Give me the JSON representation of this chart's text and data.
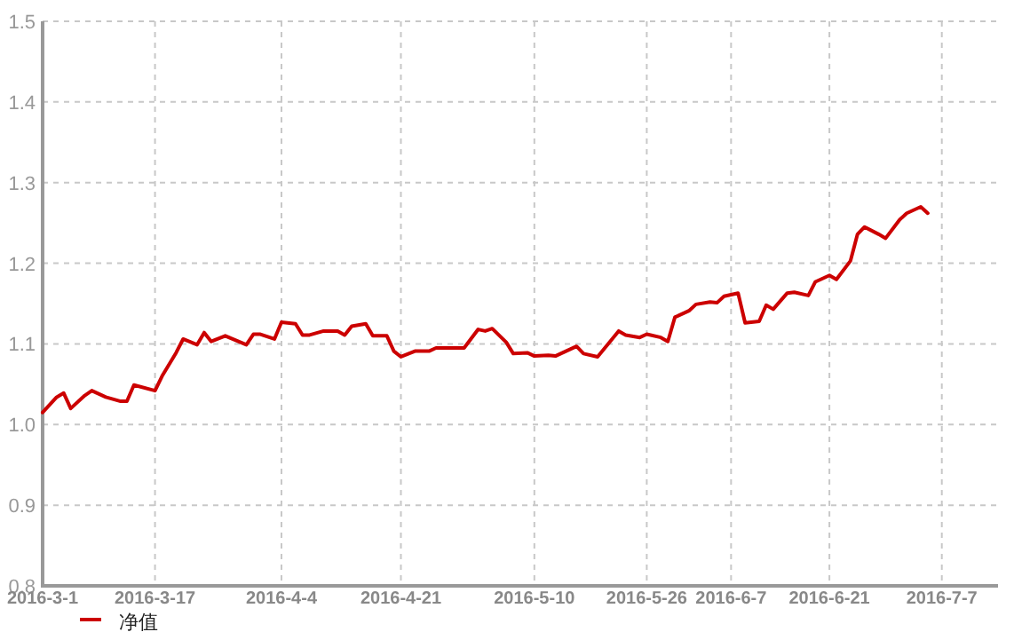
{
  "chart_data": {
    "type": "line",
    "x": [
      "2016-03-01",
      "2016-03-03",
      "2016-03-04",
      "2016-03-05",
      "2016-03-07",
      "2016-03-08",
      "2016-03-10",
      "2016-03-12",
      "2016-03-13",
      "2016-03-14",
      "2016-03-17",
      "2016-03-18",
      "2016-03-20",
      "2016-03-21",
      "2016-03-23",
      "2016-03-24",
      "2016-03-25",
      "2016-03-27",
      "2016-03-30",
      "2016-03-31",
      "2016-04-01",
      "2016-04-03",
      "2016-04-04",
      "2016-04-06",
      "2016-04-07",
      "2016-04-08",
      "2016-04-10",
      "2016-04-12",
      "2016-04-13",
      "2016-04-14",
      "2016-04-16",
      "2016-04-17",
      "2016-04-19",
      "2016-04-20",
      "2016-04-21",
      "2016-04-23",
      "2016-04-25",
      "2016-04-26",
      "2016-04-29",
      "2016-04-30",
      "2016-05-02",
      "2016-05-03",
      "2016-05-04",
      "2016-05-06",
      "2016-05-07",
      "2016-05-09",
      "2016-05-10",
      "2016-05-12",
      "2016-05-13",
      "2016-05-16",
      "2016-05-17",
      "2016-05-19",
      "2016-05-22",
      "2016-05-23",
      "2016-05-25",
      "2016-05-26",
      "2016-05-28",
      "2016-05-29",
      "2016-05-30",
      "2016-06-01",
      "2016-06-02",
      "2016-06-04",
      "2016-06-05",
      "2016-06-06",
      "2016-06-08",
      "2016-06-09",
      "2016-06-11",
      "2016-06-12",
      "2016-06-13",
      "2016-06-15",
      "2016-06-16",
      "2016-06-18",
      "2016-06-19",
      "2016-06-21",
      "2016-06-22",
      "2016-06-24",
      "2016-06-25",
      "2016-06-26",
      "2016-06-28",
      "2016-06-29",
      "2016-07-01",
      "2016-07-02",
      "2016-07-04",
      "2016-07-05"
    ],
    "series": [
      {
        "name": "净值",
        "color": "#cc0000",
        "values": [
          1.015,
          1.034,
          1.039,
          1.02,
          1.036,
          1.042,
          1.034,
          1.029,
          1.029,
          1.049,
          1.042,
          1.06,
          1.089,
          1.106,
          1.099,
          1.114,
          1.103,
          1.11,
          1.099,
          1.112,
          1.112,
          1.106,
          1.127,
          1.125,
          1.111,
          1.111,
          1.116,
          1.116,
          1.111,
          1.122,
          1.125,
          1.11,
          1.11,
          1.091,
          1.084,
          1.091,
          1.091,
          1.095,
          1.095,
          1.095,
          1.118,
          1.116,
          1.119,
          1.102,
          1.088,
          1.089,
          1.085,
          1.086,
          1.085,
          1.097,
          1.088,
          1.084,
          1.116,
          1.111,
          1.108,
          1.112,
          1.108,
          1.103,
          1.133,
          1.141,
          1.149,
          1.152,
          1.151,
          1.159,
          1.163,
          1.126,
          1.128,
          1.148,
          1.143,
          1.163,
          1.164,
          1.16,
          1.177,
          1.185,
          1.18,
          1.203,
          1.236,
          1.245,
          1.236,
          1.231,
          1.254,
          1.262,
          1.27,
          1.262
        ]
      }
    ],
    "xlim": [
      "2016-03-01",
      "2016-07-15"
    ],
    "xticks": [
      {
        "value": "2016-03-01",
        "label": "2016-3-1"
      },
      {
        "value": "2016-03-17",
        "label": "2016-3-17"
      },
      {
        "value": "2016-04-04",
        "label": "2016-4-4"
      },
      {
        "value": "2016-04-21",
        "label": "2016-4-21"
      },
      {
        "value": "2016-05-10",
        "label": "2016-5-10"
      },
      {
        "value": "2016-05-26",
        "label": "2016-5-26"
      },
      {
        "value": "2016-06-07",
        "label": "2016-6-7"
      },
      {
        "value": "2016-06-21",
        "label": "2016-6-21"
      },
      {
        "value": "2016-07-07",
        "label": "2016-7-7"
      }
    ],
    "ylim": [
      0.8,
      1.5
    ],
    "yticks": [
      0.8,
      0.9,
      {
        "value": 1.0,
        "label": "1.0"
      },
      1.1,
      1.2,
      1.3,
      1.4,
      1.5
    ],
    "grid": true,
    "legend": "bottom left"
  }
}
